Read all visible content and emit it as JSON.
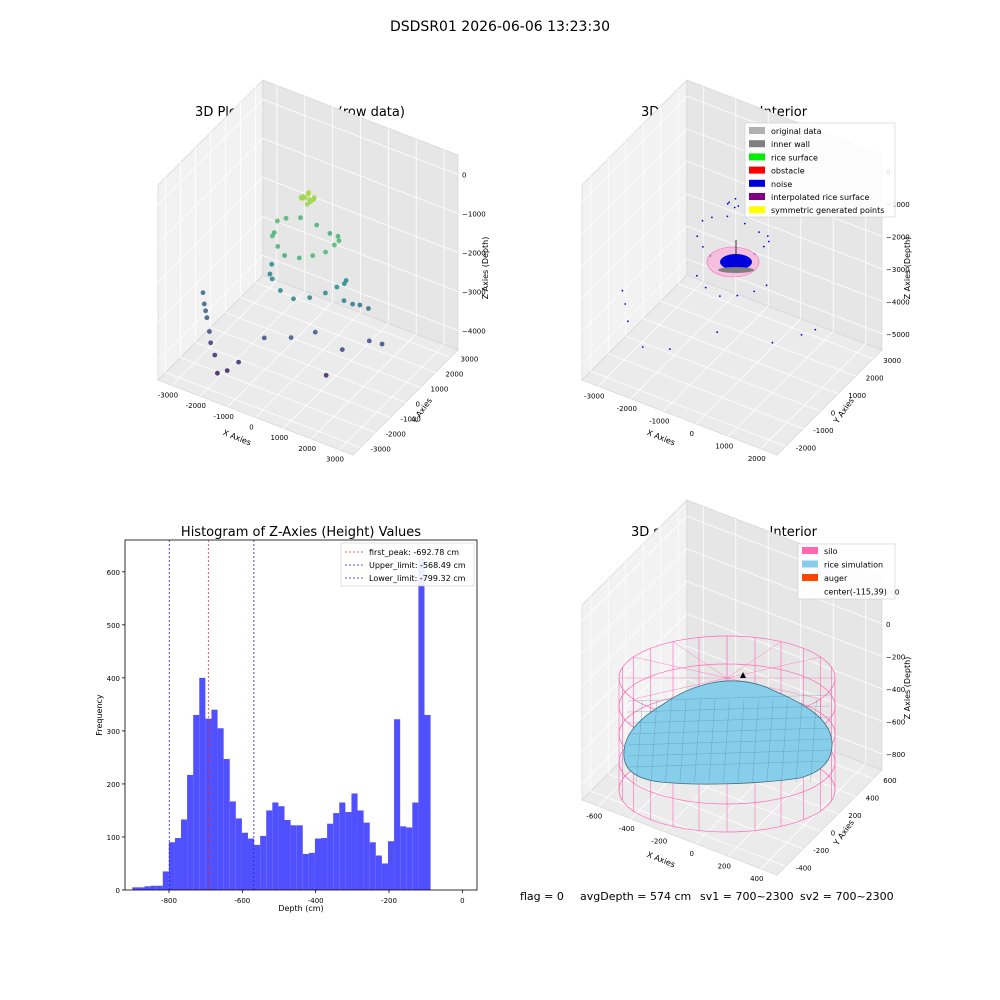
{
  "figure": {
    "suptitle": "DSDSR01 2026-06-06 13:23:30",
    "status_line": {
      "flag": "flag = 0",
      "avg_depth": "avgDepth = 574 cm",
      "sv1": "sv1 = 700~2300",
      "sv2": "sv2 = 700~2300"
    }
  },
  "chart_data": [
    {
      "type": "scatter",
      "projection": "3d",
      "title": "3D Plot of Silo Interior(row data)",
      "xlabel": "X Axies",
      "ylabel": "Y Axies",
      "zlabel": "Z Axies (Depth)",
      "xticks": [
        "-3000",
        "-2000",
        "-1000",
        "0",
        "1000",
        "2000",
        "3000"
      ],
      "yticks": [
        "-3000",
        "-2000",
        "-1000",
        "0",
        "1000",
        "2000",
        "3000"
      ],
      "zticks": [
        "0",
        "−1000",
        "−2000",
        "−3000",
        "−4000"
      ],
      "zlim": [
        -4500,
        0
      ],
      "grid": true,
      "colormap": "viridis (by depth)",
      "series": [
        {
          "points": [
            [
              -150,
              -200,
              -600
            ],
            [
              -50,
              -120,
              -620
            ],
            [
              80,
              -40,
              -650
            ],
            [
              200,
              50,
              -600
            ],
            [
              120,
              150,
              -700
            ],
            [
              -100,
              220,
              -640
            ],
            [
              -230,
              100,
              -700
            ],
            [
              0,
              0,
              -560
            ],
            [
              60,
              -160,
              -720
            ],
            [
              -180,
              -60,
              -680
            ],
            [
              150,
              -100,
              -660
            ],
            [
              -60,
              160,
              -590
            ]
          ]
        },
        {
          "points": [
            [
              -900,
              -700,
              -1500
            ],
            [
              -600,
              -900,
              -1600
            ],
            [
              -300,
              -1000,
              -1700
            ],
            [
              200,
              -950,
              -1650
            ],
            [
              600,
              -800,
              -1550
            ],
            [
              900,
              -500,
              -1500
            ],
            [
              1000,
              -100,
              -1450
            ],
            [
              950,
              300,
              -1500
            ],
            [
              700,
              700,
              -1600
            ],
            [
              300,
              900,
              -1700
            ],
            [
              -200,
              950,
              -1650
            ],
            [
              -700,
              800,
              -1550
            ],
            [
              -1000,
              400,
              -1500
            ],
            [
              -1100,
              0,
              -1450
            ],
            [
              -1050,
              -300,
              -1600
            ]
          ]
        },
        {
          "points": [
            [
              -800,
              -900,
              -2400
            ],
            [
              -400,
              -1100,
              -2500
            ],
            [
              100,
              -1150,
              -2550
            ],
            [
              600,
              -1000,
              -2450
            ],
            [
              1000,
              -700,
              -2350
            ],
            [
              1200,
              -300,
              -2300
            ],
            [
              1250,
              100,
              -2350
            ],
            [
              1100,
              500,
              -2450
            ],
            [
              -1100,
              -500,
              -2500
            ],
            [
              -1250,
              -100,
              -2450
            ],
            [
              1400,
              -200,
              -2600
            ],
            [
              1600,
              0,
              -2700
            ],
            [
              1700,
              300,
              -2800
            ],
            [
              1900,
              500,
              -2900
            ]
          ]
        },
        {
          "points": [
            [
              -2800,
              -1800,
              -2900
            ],
            [
              -2700,
              -1900,
              -3100
            ],
            [
              -2600,
              -2000,
              -3200
            ],
            [
              -2500,
              -2100,
              -3300
            ],
            [
              -2300,
              -2300,
              -3500
            ],
            [
              -2200,
              -2400,
              -3700
            ],
            [
              -2000,
              -2500,
              -3900
            ],
            [
              -1500,
              -2600,
              -4100
            ],
            [
              -1200,
              -2400,
              -3900
            ],
            [
              -600,
              -1800,
              -3400
            ],
            [
              200,
              -1500,
              -3300
            ],
            [
              800,
              -1000,
              -3200
            ],
            [
              1500,
              -500,
              -3600
            ],
            [
              2200,
              0,
              -3400
            ],
            [
              2500,
              300,
              -3500
            ],
            [
              -1800,
              -2700,
              -4200
            ],
            [
              1300,
              -1200,
              -4000
            ]
          ]
        }
      ]
    },
    {
      "type": "scatter",
      "projection": "3d",
      "title": "3D classify of Silo Interior",
      "xlabel": "X Axies",
      "ylabel": "Y Axies",
      "zlabel": "Z Axies (Depth)",
      "xticks": [
        "-3000",
        "-2000",
        "-1000",
        "0",
        "1000",
        "2000"
      ],
      "yticks": [
        "-2000",
        "-1000",
        "0",
        "1000",
        "2000",
        "3000"
      ],
      "zticks": [
        "0",
        "−1000",
        "−2000",
        "−3000",
        "−4000",
        "−5000"
      ],
      "zlim": [
        -5000,
        0
      ],
      "legend_position": "upper right",
      "legend": [
        {
          "label": "original data",
          "color": "#b0b0b0"
        },
        {
          "label": "inner wall",
          "color": "#808080"
        },
        {
          "label": "rice surface",
          "color": "#00ee00"
        },
        {
          "label": "obstacle",
          "color": "#ff0000"
        },
        {
          "label": "noise",
          "color": "#0000dd"
        },
        {
          "label": "interpolated rice surface",
          "color": "#800080"
        },
        {
          "label": "symmetric generated points",
          "color": "#ffff00"
        }
      ],
      "series": [
        {
          "name": "noise",
          "points": [
            [
              -900,
              -700,
              -1500
            ],
            [
              -600,
              -900,
              -1600
            ],
            [
              -300,
              -1000,
              -1700
            ],
            [
              200,
              -950,
              -1650
            ],
            [
              600,
              -800,
              -1550
            ],
            [
              900,
              -500,
              -1500
            ],
            [
              1000,
              -100,
              -1450
            ],
            [
              950,
              300,
              -1500
            ],
            [
              700,
              700,
              -1600
            ],
            [
              300,
              900,
              -1700
            ],
            [
              -200,
              950,
              -1650
            ],
            [
              -700,
              800,
              -1550
            ],
            [
              -1000,
              400,
              -1500
            ],
            [
              -1100,
              0,
              -1450
            ],
            [
              -800,
              -900,
              -2400
            ],
            [
              -400,
              -1100,
              -2500
            ],
            [
              100,
              -1150,
              -2550
            ],
            [
              600,
              -1000,
              -2450
            ],
            [
              1000,
              -700,
              -2350
            ],
            [
              1200,
              -300,
              -2300
            ],
            [
              -2800,
              -1800,
              -3000
            ],
            [
              -2600,
              -2000,
              -3200
            ],
            [
              -2400,
              -2200,
              -3500
            ],
            [
              -1800,
              -2400,
              -3900
            ],
            [
              -1000,
              -2200,
              -3800
            ],
            [
              200,
              -1500,
              -3300
            ],
            [
              1500,
              -500,
              -3600
            ],
            [
              2200,
              0,
              -3400
            ],
            [
              2500,
              300,
              -3300
            ],
            [
              -150,
              -200,
              -650
            ],
            [
              60,
              -160,
              -700
            ],
            [
              150,
              -100,
              -660
            ],
            [
              -180,
              -60,
              -680
            ],
            [
              0,
              0,
              -560
            ]
          ]
        }
      ]
    },
    {
      "type": "bar",
      "title": "Histogram of Z-Axies (Height) Values",
      "xlabel": "Depth (cm)",
      "ylabel": "Frequency",
      "xlim": [
        -920,
        40
      ],
      "ylim": [
        0,
        660
      ],
      "xticks": [
        -800,
        -600,
        -400,
        -200,
        0
      ],
      "yticks": [
        0,
        100,
        200,
        300,
        400,
        500,
        600
      ],
      "bar_color": "#5050ff",
      "bin_edges_start": -900,
      "bin_width": 16.6,
      "values": [
        5,
        5,
        7,
        8,
        8,
        35,
        90,
        98,
        133,
        217,
        330,
        400,
        323,
        340,
        305,
        247,
        167,
        135,
        108,
        97,
        85,
        102,
        150,
        165,
        158,
        132,
        122,
        122,
        68,
        70,
        97,
        98,
        125,
        145,
        165,
        147,
        182,
        150,
        127,
        90,
        65,
        50,
        92,
        322,
        120,
        118,
        165,
        625,
        330
      ],
      "vlines": [
        {
          "label": "first_peak: -692.78 cm",
          "x": -692.78,
          "color": "#e03030"
        },
        {
          "label": "Upper_limit: -568.49 cm",
          "x": -568.49,
          "color": "#2020d0"
        },
        {
          "label": "Lower_limit: -799.32 cm",
          "x": -799.32,
          "color": "#2020d0"
        }
      ],
      "legend_position": "upper right"
    },
    {
      "type": "surface",
      "projection": "3d",
      "title": "3D simulation of Silo Interior",
      "xlabel": "X Axies",
      "ylabel": "Y Axies",
      "zlabel": "Z Axies (Depth)",
      "xticks": [
        "-600",
        "-400",
        "-200",
        "0",
        "200",
        "400"
      ],
      "yticks": [
        "-400",
        "-200",
        "0",
        "200",
        "400",
        "600"
      ],
      "zticks": [
        "200",
        "0",
        "−200",
        "−400",
        "−600",
        "−800"
      ],
      "legend_position": "upper right",
      "legend": [
        {
          "label": "silo",
          "color": "#ff69b4"
        },
        {
          "label": "rice simulation",
          "color": "#87ceeb"
        },
        {
          "label": "auger",
          "color": "#ff4500"
        },
        {
          "label": "center(-115,39)",
          "color": ""
        }
      ]
    }
  ]
}
